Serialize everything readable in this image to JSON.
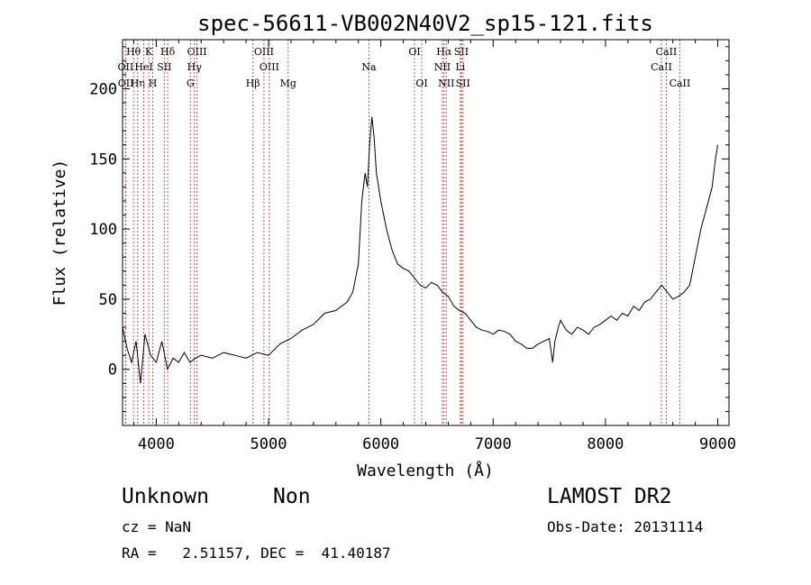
{
  "chart_data": {
    "type": "line",
    "title": "spec-56611-VB002N40V2_sp15-121.fits",
    "xlabel": "Wavelength (Å)",
    "ylabel": "Flux (relative)",
    "xlim": [
      3700,
      9100
    ],
    "ylim": [
      -40,
      235
    ],
    "xticks": [
      4000,
      5000,
      6000,
      7000,
      8000,
      9000
    ],
    "yticks": [
      0,
      50,
      100,
      150,
      200
    ],
    "grid": false,
    "line_color": "#000000",
    "marker_line_color": "#c0504d",
    "series": [
      {
        "x": [
          3700,
          3740,
          3780,
          3820,
          3860,
          3900,
          3950,
          4000,
          4050,
          4100,
          4150,
          4200,
          4250,
          4300,
          4350,
          4400,
          4500,
          4600,
          4700,
          4800,
          4900,
          5000,
          5100,
          5200,
          5300,
          5400,
          5500,
          5600,
          5700,
          5750,
          5800,
          5830,
          5860,
          5880,
          5900,
          5920,
          5940,
          5960,
          6000,
          6050,
          6100,
          6150,
          6200,
          6250,
          6300,
          6350,
          6400,
          6450,
          6500,
          6550,
          6600,
          6650,
          6700,
          6750,
          6800,
          6850,
          6900,
          6950,
          7000,
          7050,
          7100,
          7150,
          7200,
          7250,
          7300,
          7350,
          7400,
          7450,
          7500,
          7530,
          7550,
          7580,
          7600,
          7650,
          7700,
          7750,
          7800,
          7850,
          7900,
          7950,
          8000,
          8050,
          8100,
          8150,
          8200,
          8250,
          8300,
          8350,
          8400,
          8450,
          8500,
          8550,
          8600,
          8650,
          8700,
          8750,
          8800,
          8850,
          8900,
          8950,
          8980,
          9000
        ],
        "y": [
          30,
          15,
          5,
          20,
          -10,
          25,
          10,
          5,
          20,
          0,
          8,
          5,
          12,
          5,
          8,
          10,
          8,
          12,
          10,
          8,
          12,
          10,
          18,
          22,
          28,
          32,
          40,
          42,
          48,
          55,
          75,
          120,
          140,
          130,
          160,
          180,
          165,
          140,
          120,
          100,
          85,
          75,
          72,
          70,
          65,
          60,
          58,
          62,
          60,
          55,
          52,
          45,
          42,
          40,
          35,
          30,
          28,
          27,
          25,
          28,
          27,
          25,
          20,
          18,
          15,
          15,
          18,
          20,
          22,
          5,
          20,
          30,
          35,
          28,
          25,
          30,
          28,
          25,
          30,
          32,
          35,
          38,
          35,
          40,
          38,
          45,
          42,
          48,
          50,
          55,
          60,
          55,
          50,
          52,
          55,
          60,
          80,
          100,
          115,
          130,
          150,
          160
        ]
      }
    ],
    "line_markers": [
      {
        "label": "Hθ",
        "x": 3798,
        "row": 1
      },
      {
        "label": "OII",
        "x": 3727,
        "row": 2
      },
      {
        "label": "OII",
        "x": 3729,
        "row": 3
      },
      {
        "label": "Hη",
        "x": 3835,
        "row": 3
      },
      {
        "label": "K",
        "x": 3934,
        "row": 1
      },
      {
        "label": "HeI",
        "x": 3889,
        "row": 2
      },
      {
        "label": "H",
        "x": 3969,
        "row": 3
      },
      {
        "label": "Hδ",
        "x": 4102,
        "row": 1
      },
      {
        "label": "SII",
        "x": 4072,
        "row": 2
      },
      {
        "label": "OIII",
        "x": 4363,
        "row": 1
      },
      {
        "label": "Hγ",
        "x": 4340,
        "row": 2
      },
      {
        "label": "G",
        "x": 4305,
        "row": 3
      },
      {
        "label": "OIII",
        "x": 4959,
        "row": 1
      },
      {
        "label": "OIII",
        "x": 5007,
        "row": 2
      },
      {
        "label": "Hβ",
        "x": 4861,
        "row": 3
      },
      {
        "label": "Mg",
        "x": 5175,
        "row": 3
      },
      {
        "label": "Na",
        "x": 5894,
        "row": 2
      },
      {
        "label": "OI",
        "x": 6300,
        "row": 1
      },
      {
        "label": "OI",
        "x": 6364,
        "row": 3
      },
      {
        "label": "Hα",
        "x": 6563,
        "row": 1
      },
      {
        "label": "NII",
        "x": 6548,
        "row": 2
      },
      {
        "label": "NII",
        "x": 6583,
        "row": 3
      },
      {
        "label": "SII",
        "x": 6717,
        "row": 1
      },
      {
        "label": "Li",
        "x": 6708,
        "row": 2
      },
      {
        "label": "SII",
        "x": 6731,
        "row": 3
      },
      {
        "label": "CaII",
        "x": 8498,
        "row": 2
      },
      {
        "label": "CaII",
        "x": 8542,
        "row": 1
      },
      {
        "label": "CaII",
        "x": 8662,
        "row": 3
      }
    ]
  },
  "info": {
    "class_label": "Unknown",
    "subclass_label": "Non",
    "survey": "LAMOST DR2",
    "cz": "cz = NaN",
    "obs_date": "Obs-Date: 20131114",
    "radec": "RA =   2.51157, DEC =  41.40187"
  }
}
